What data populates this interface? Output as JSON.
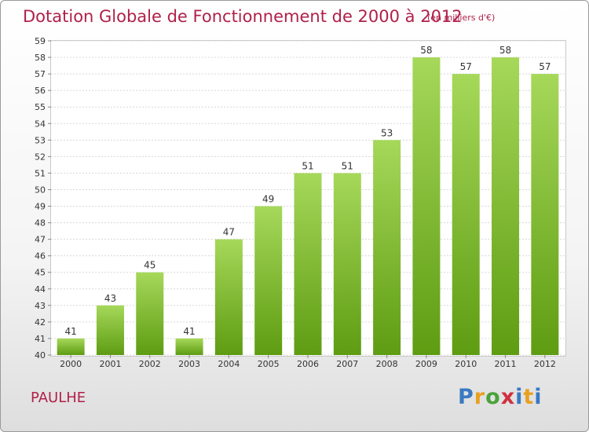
{
  "header": {
    "title": "Dotation Globale de Fonctionnement de 2000 à 2012",
    "unit": "(en milliers d'€)"
  },
  "footer": {
    "commune": "PAULHE",
    "logo_icon": "proxiti-logo",
    "logo_text": "Proxiti"
  },
  "colors": {
    "title": "#b0204a",
    "bar_top": "#a6d85a",
    "bar_bottom": "#5e9c12"
  },
  "chart_data": {
    "type": "bar",
    "categories": [
      "2000",
      "2001",
      "2002",
      "2003",
      "2004",
      "2005",
      "2006",
      "2007",
      "2008",
      "2009",
      "2010",
      "2011",
      "2012"
    ],
    "values": [
      41,
      43,
      45,
      41,
      47,
      49,
      51,
      51,
      53,
      58,
      57,
      58,
      57
    ],
    "ylim": [
      40,
      59
    ],
    "ytick_step": 1,
    "grid": true,
    "legend": "none",
    "title": "Dotation Globale de Fonctionnement de 2000 à 2012",
    "ylabel": "",
    "xlabel": ""
  }
}
